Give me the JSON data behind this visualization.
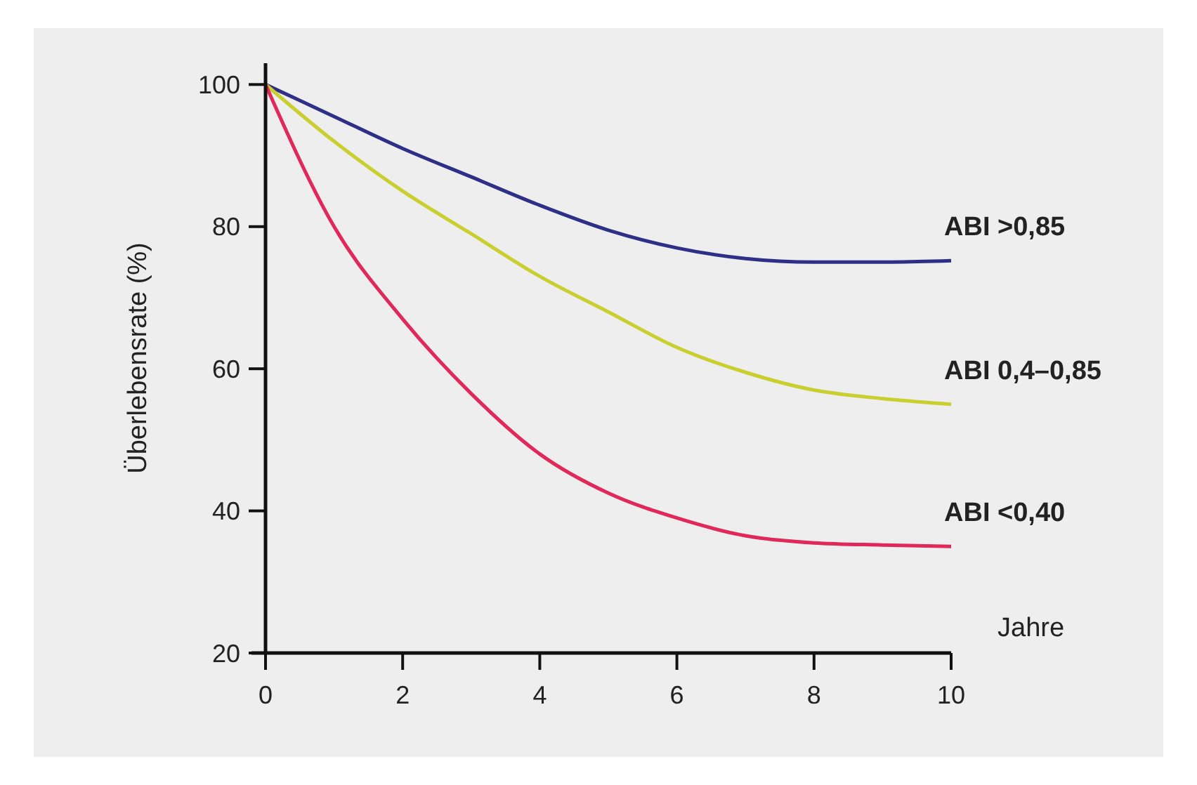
{
  "chart_data": {
    "type": "line",
    "ylabel": "Überlebensrate (%)",
    "xlabel": "Jahre",
    "xlim": [
      0,
      10
    ],
    "ylim": [
      20,
      103
    ],
    "xticks": [
      0,
      2,
      4,
      6,
      8,
      10
    ],
    "yticks": [
      20,
      40,
      60,
      80,
      100
    ],
    "grid": false,
    "marker": "none",
    "line_style": "solid",
    "x": [
      0,
      1,
      2,
      3,
      4,
      5,
      6,
      7,
      8,
      9,
      10
    ],
    "series": [
      {
        "name": "ABI >0,85",
        "color": "#2e2f86",
        "values": [
          100,
          95.5,
          91,
          87,
          83,
          79.5,
          77,
          75.5,
          75,
          75,
          75.2
        ]
      },
      {
        "name": "ABI 0,4–0,85",
        "color": "#c9cf2e",
        "values": [
          100,
          92,
          85,
          79,
          73,
          68,
          63,
          59.5,
          57,
          55.8,
          55
        ]
      },
      {
        "name": "ABI <0,40",
        "color": "#e0285a",
        "values": [
          100,
          80,
          67,
          56.5,
          48,
          42.5,
          39,
          36.5,
          35.5,
          35.2,
          35
        ]
      }
    ]
  }
}
